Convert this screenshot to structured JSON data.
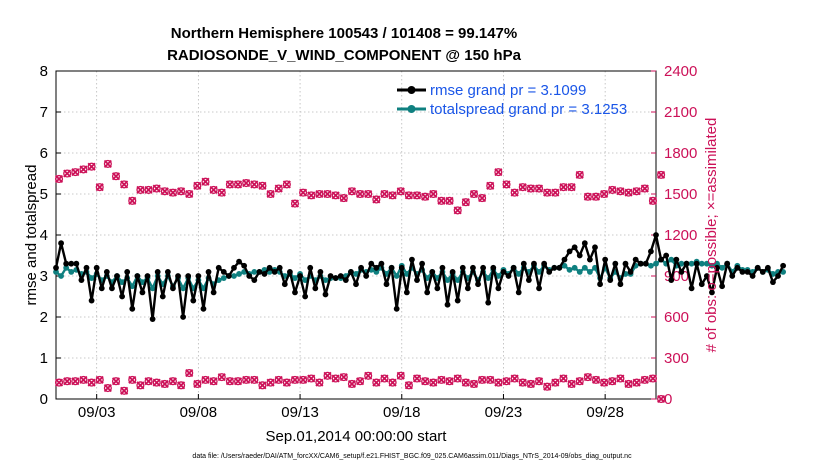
{
  "chart_data": {
    "type": "line",
    "title": "Northern Hemisphere 100543 / 101408 = 99.147%",
    "subtitle": "RADIOSONDE_V_WIND_COMPONENT @ 150 hPa",
    "xlabel": "Sep.01,2014 00:00:00 start",
    "ylabel": "rmse and totalspread",
    "ylabel_right": "# of obs: o=possible; ×=assimilated",
    "xlim": [
      1.0,
      30.5
    ],
    "ylim": [
      0,
      8
    ],
    "ylim_right": [
      0,
      2400
    ],
    "x_ticks": [
      {
        "value": 3,
        "label": "09/03"
      },
      {
        "value": 8,
        "label": "09/08"
      },
      {
        "value": 13,
        "label": "09/13"
      },
      {
        "value": 18,
        "label": "09/18"
      },
      {
        "value": 23,
        "label": "09/23"
      },
      {
        "value": 28,
        "label": "09/28"
      }
    ],
    "y_ticks": [
      "0",
      "1",
      "2",
      "3",
      "4",
      "5",
      "6",
      "7",
      "8"
    ],
    "y_ticks_right": [
      "0",
      "300",
      "600",
      "900",
      "1200",
      "1500",
      "1800",
      "2100",
      "2400"
    ],
    "legend": [
      {
        "name": "rmse grand pr = 3.1099",
        "color": "#000000"
      },
      {
        "name": "totalspread grand pr = 3.1253",
        "color": "#0f8080"
      }
    ],
    "legend_position": "top-right",
    "colors": {
      "rmse": "#000000",
      "spread": "#0f8080",
      "obs": "#cc1158"
    },
    "x_start": 1.0,
    "x_step": 0.25,
    "series": [
      {
        "name": "rmse",
        "axis": "left",
        "values": [
          3.2,
          3.8,
          3.3,
          3.3,
          3.3,
          2.9,
          3.2,
          2.4,
          3.2,
          2.7,
          3.1,
          2.7,
          3.0,
          2.5,
          3.1,
          2.2,
          3.0,
          2.6,
          3.0,
          1.95,
          3.1,
          2.5,
          3.1,
          2.7,
          3.0,
          2.0,
          3.0,
          2.4,
          3.0,
          2.2,
          3.1,
          2.6,
          3.2,
          3.1,
          3.0,
          3.2,
          3.35,
          3.25,
          3.0,
          2.9,
          3.1,
          3.05,
          3.2,
          3.1,
          3.2,
          2.8,
          3.1,
          2.6,
          3.0,
          2.5,
          3.2,
          2.7,
          3.1,
          2.55,
          3.0,
          2.95,
          3.0,
          2.9,
          3.1,
          2.8,
          3.2,
          3.0,
          3.3,
          3.2,
          3.3,
          2.8,
          3.2,
          2.2,
          3.2,
          2.6,
          3.4,
          2.9,
          3.3,
          2.6,
          3.1,
          2.7,
          3.2,
          2.3,
          3.1,
          2.4,
          3.2,
          2.7,
          3.2,
          2.8,
          3.2,
          2.35,
          3.2,
          2.7,
          3.1,
          3.0,
          3.2,
          2.6,
          3.3,
          2.9,
          3.3,
          2.7,
          3.3,
          3.1,
          3.2,
          3.2,
          3.4,
          3.6,
          3.7,
          3.5,
          3.8,
          3.4,
          3.7,
          2.8,
          3.4,
          2.9,
          3.3,
          2.8,
          3.3,
          3.1,
          3.4,
          3.3,
          3.3,
          3.6,
          4.0,
          3.4,
          3.5,
          2.9,
          3.4,
          3.1,
          3.3,
          2.7,
          3.3,
          2.8,
          3.0,
          2.6,
          3.2,
          2.75,
          3.3,
          3.0,
          3.2,
          3.1,
          3.1,
          3.0,
          3.2,
          3.1,
          3.2,
          2.85,
          3.0,
          3.25
        ]
      },
      {
        "name": "totalspread",
        "axis": "left",
        "values": [
          3.1,
          3.0,
          3.2,
          3.1,
          3.15,
          3.05,
          3.1,
          2.95,
          3.05,
          2.9,
          3.0,
          2.85,
          3.0,
          2.85,
          2.95,
          2.75,
          3.0,
          2.85,
          2.95,
          2.7,
          3.0,
          2.8,
          3.0,
          2.75,
          2.95,
          2.7,
          2.95,
          2.7,
          2.9,
          2.7,
          2.95,
          2.8,
          2.9,
          2.95,
          3.0,
          3.0,
          3.05,
          3.1,
          3.05,
          3.1,
          3.1,
          3.15,
          3.1,
          3.15,
          3.1,
          3.0,
          3.05,
          2.95,
          3.05,
          2.9,
          3.0,
          2.9,
          3.0,
          2.9,
          2.95,
          2.95,
          2.95,
          3.0,
          3.1,
          3.05,
          3.15,
          3.1,
          3.15,
          3.1,
          3.2,
          3.05,
          3.2,
          3.0,
          3.25,
          3.05,
          3.2,
          3.05,
          3.15,
          2.95,
          3.1,
          2.95,
          3.1,
          2.9,
          3.05,
          2.9,
          3.1,
          2.95,
          3.1,
          2.9,
          3.1,
          2.95,
          3.15,
          3.0,
          3.15,
          3.05,
          3.2,
          3.05,
          3.2,
          3.1,
          3.25,
          3.1,
          3.25,
          3.15,
          3.2,
          3.2,
          3.25,
          3.15,
          3.2,
          3.1,
          3.2,
          3.1,
          3.2,
          2.95,
          3.2,
          2.95,
          3.1,
          2.95,
          3.05,
          3.05,
          3.25,
          3.3,
          3.3,
          3.25,
          3.3,
          3.4,
          3.3,
          3.4,
          3.25,
          3.3,
          3.3,
          3.3,
          3.35,
          3.3,
          3.3,
          3.25,
          3.3,
          3.2,
          3.3,
          3.1,
          3.25,
          3.15,
          3.15,
          3.1,
          3.2,
          3.1,
          3.15,
          3.05,
          3.1,
          3.1
        ]
      },
      {
        "name": "obs possible (upper)",
        "axis": "right",
        "values": [
          1610,
          1650,
          1660,
          1680,
          1700,
          1550,
          1720,
          1630,
          1570,
          1450,
          1530,
          1530,
          1540,
          1520,
          1510,
          1520,
          1500,
          1560,
          1590,
          1530,
          1510,
          1570,
          1570,
          1580,
          1570,
          1560,
          1500,
          1540,
          1570,
          1430,
          1510,
          1490,
          1500,
          1500,
          1490,
          1470,
          1520,
          1500,
          1500,
          1460,
          1500,
          1490,
          1520,
          1490,
          1490,
          1480,
          1500,
          1450,
          1450,
          1380,
          1440,
          1500,
          1470,
          1560,
          1660,
          1570,
          1510,
          1550,
          1540,
          1540,
          1510,
          1510,
          1550,
          1550,
          1640,
          1480,
          1480,
          1500,
          1530,
          1520,
          1510,
          1520,
          1540,
          1450,
          1640
        ]
      },
      {
        "name": "obs possible (lower)",
        "axis": "right",
        "values": [
          120,
          130,
          130,
          140,
          120,
          140,
          80,
          130,
          60,
          140,
          100,
          130,
          120,
          110,
          130,
          100,
          190,
          110,
          140,
          130,
          160,
          130,
          130,
          140,
          140,
          100,
          120,
          140,
          120,
          140,
          140,
          150,
          120,
          170,
          150,
          160,
          110,
          130,
          170,
          120,
          150,
          120,
          170,
          100,
          150,
          130,
          120,
          140,
          130,
          150,
          120,
          110,
          140,
          140,
          120,
          130,
          150,
          120,
          110,
          130,
          90,
          120,
          150,
          110,
          130,
          160,
          140,
          120,
          130,
          150,
          110,
          120,
          140,
          150,
          0
        ]
      }
    ],
    "obs_x_step": 0.4
  },
  "footer": {
    "data_file": "data file: /Users/raeder/DAI/ATM_forcXX/CAM6_setup/f.e21.FHIST_BGC.f09_025.CAM6assim.011/Diags_NTrS_2014-09/obs_diag_output.nc"
  }
}
